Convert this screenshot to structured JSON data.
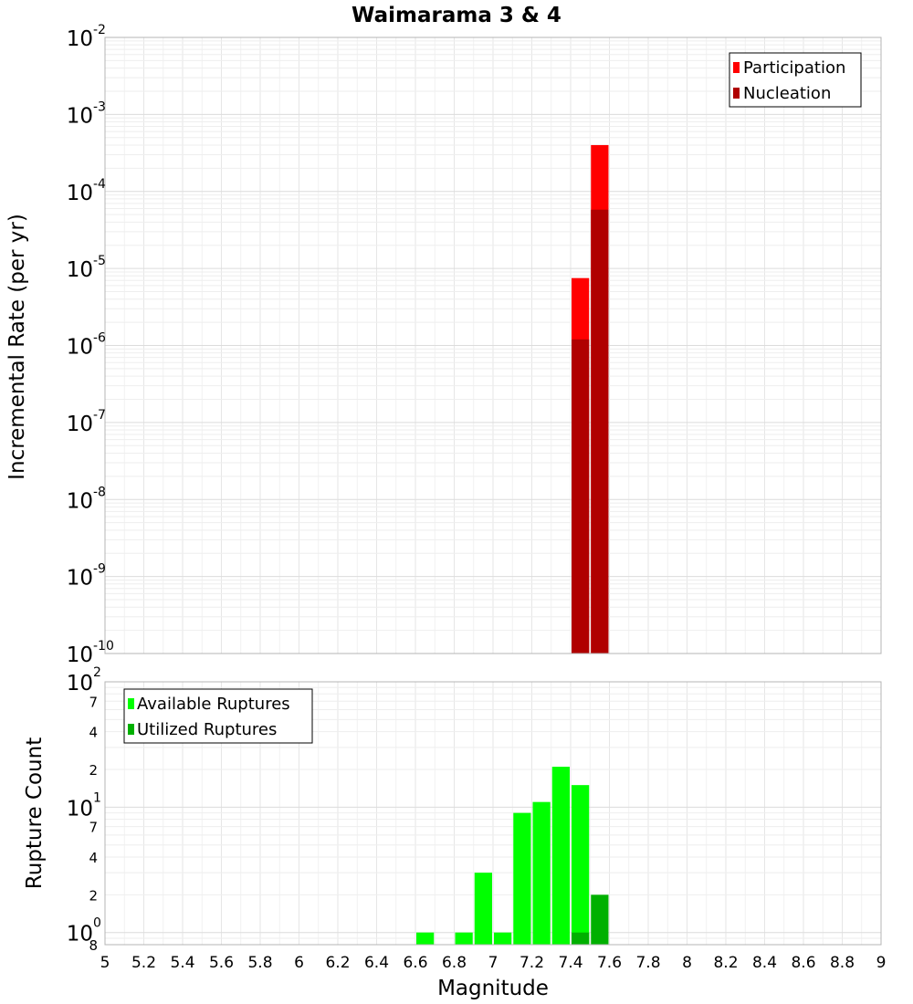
{
  "chart_data": [
    {
      "type": "bar",
      "title": "Waimarama 3 & 4",
      "xlabel": "",
      "ylabel": "Incremental Rate (per yr)",
      "yscale": "log",
      "ylim": [
        1e-10,
        0.01
      ],
      "xlim": [
        5,
        9
      ],
      "y_ticks": [
        {
          "base": "10",
          "exp": "-10"
        },
        {
          "base": "10",
          "exp": "-9"
        },
        {
          "base": "10",
          "exp": "-8"
        },
        {
          "base": "10",
          "exp": "-7"
        },
        {
          "base": "10",
          "exp": "-6"
        },
        {
          "base": "10",
          "exp": "-5"
        },
        {
          "base": "10",
          "exp": "-4"
        },
        {
          "base": "10",
          "exp": "-3"
        },
        {
          "base": "10",
          "exp": "-2"
        }
      ],
      "legend_position": "top-right",
      "grid": true,
      "bin_width": 0.1,
      "series": [
        {
          "name": "Participation",
          "color": "#ff0000",
          "bins": [
            {
              "x": 7.45,
              "value": 7.5e-06
            },
            {
              "x": 7.55,
              "value": 0.0004
            }
          ]
        },
        {
          "name": "Nucleation",
          "color": "#b00000",
          "bins": [
            {
              "x": 7.45,
              "value": 1.2e-06
            },
            {
              "x": 7.55,
              "value": 5.8e-05
            }
          ]
        }
      ]
    },
    {
      "type": "bar",
      "xlabel": "Magnitude",
      "ylabel": "Rupture Count",
      "yscale": "log",
      "ylim": [
        0.8,
        100
      ],
      "xlim": [
        5,
        9
      ],
      "y_major_ticks": [
        {
          "base": "10",
          "exp": "0"
        },
        {
          "base": "10",
          "exp": "1"
        },
        {
          "base": "10",
          "exp": "2"
        }
      ],
      "y_minor_ticks": [
        {
          "label": "8",
          "value": 0.8
        },
        {
          "label": "2",
          "value": 2
        },
        {
          "label": "4",
          "value": 4
        },
        {
          "label": "7",
          "value": 7
        },
        {
          "label": "2",
          "value": 20
        },
        {
          "label": "4",
          "value": 40
        },
        {
          "label": "7",
          "value": 70
        }
      ],
      "x_ticks": [
        "5",
        "5.2",
        "5.4",
        "5.6",
        "5.8",
        "6",
        "6.2",
        "6.4",
        "6.6",
        "6.8",
        "7",
        "7.2",
        "7.4",
        "7.6",
        "7.8",
        "8",
        "8.2",
        "8.4",
        "8.6",
        "8.8",
        "9"
      ],
      "legend_position": "top-left",
      "grid": true,
      "bin_width": 0.1,
      "series": [
        {
          "name": "Available Ruptures",
          "color": "#00ff00",
          "bins": [
            {
              "x": 6.65,
              "value": 1
            },
            {
              "x": 6.85,
              "value": 1
            },
            {
              "x": 6.95,
              "value": 3
            },
            {
              "x": 7.05,
              "value": 1
            },
            {
              "x": 7.15,
              "value": 9
            },
            {
              "x": 7.25,
              "value": 11
            },
            {
              "x": 7.35,
              "value": 21
            },
            {
              "x": 7.45,
              "value": 15
            }
          ]
        },
        {
          "name": "Utilized Ruptures",
          "color": "#00b000",
          "bins": [
            {
              "x": 7.45,
              "value": 1
            },
            {
              "x": 7.55,
              "value": 2
            }
          ]
        }
      ]
    }
  ]
}
